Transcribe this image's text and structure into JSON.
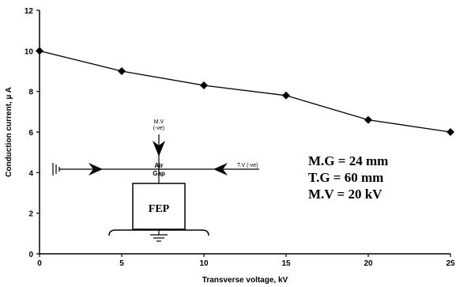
{
  "chart_data": {
    "type": "line",
    "title": "",
    "xlabel": "Transverse voltage, kV",
    "ylabel": "Conduction current, µ A",
    "xlim": [
      0,
      25
    ],
    "ylim": [
      0,
      12
    ],
    "x_ticks": [
      "0",
      "5",
      "10",
      "15",
      "20",
      "25"
    ],
    "y_ticks": [
      "0",
      "2",
      "4",
      "6",
      "8",
      "10",
      "12"
    ],
    "grid": false,
    "legend": "none",
    "marker": "diamond",
    "color": "#000000",
    "series": [
      {
        "x": [
          0,
          5,
          10,
          15,
          20,
          25
        ],
        "values": [
          10.0,
          9.0,
          8.3,
          7.8,
          6.6,
          6.0
        ]
      }
    ]
  },
  "inset": {
    "mv_label_line1": "M.V",
    "mv_label_line2": "(-ve)",
    "air_label": "Air",
    "gap_label": "Gap",
    "tv_label": "T.V (-ve)",
    "box_label": "FEP"
  },
  "parameters": [
    "M.G = 24 mm",
    "T.G  = 60 mm",
    "M.V = 20 kV"
  ]
}
